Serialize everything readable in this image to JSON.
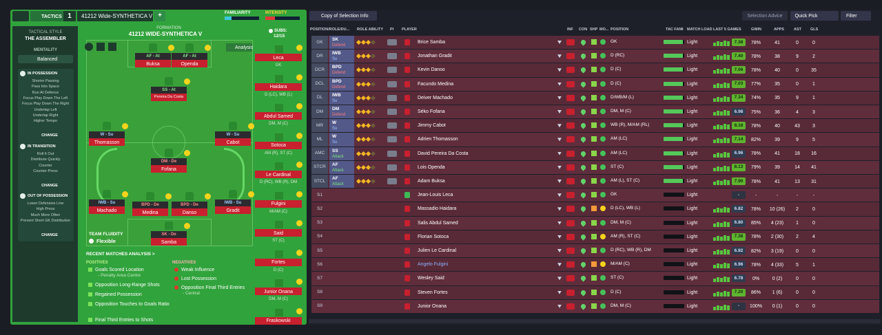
{
  "header": {
    "tactics": "TACTICS",
    "slot": "1",
    "tactic_name": "41212 Wide-SYNTHETICA V",
    "add": "+",
    "familiarity": "FAMILIARITY",
    "intensity": "INTENSITY"
  },
  "sidebar": {
    "style_label": "TACTICAL STYLE",
    "style": "THE ASSEMBLER",
    "mentality_label": "MENTALITY",
    "mentality": "Balanced",
    "sections": [
      {
        "title": "IN POSSESSION",
        "items": [
          "Shorter Passing",
          "Pass Into Space",
          "Run At Defence",
          "Focus Play Down The Left",
          "Focus Play Down The Right",
          "Underlap Left",
          "Underlap Right",
          "Higher Tempo"
        ],
        "button": "CHANGE"
      },
      {
        "title": "IN TRANSITION",
        "items": [
          "Roll It Out",
          "Distribute Quickly",
          "Counter",
          "Counter-Press"
        ],
        "button": "CHANGE"
      },
      {
        "title": "OUT OF POSSESSION",
        "items": [
          "Lower Defensive Line",
          "High Press",
          "Much More Often",
          "Prevent Short GK Distribution"
        ],
        "button": "CHANGE"
      }
    ]
  },
  "pitch": {
    "formation_label": "FORMATION",
    "formation": "41212 WIDE-SYNTHETICA V",
    "analysis": "Analysis",
    "fluidity_label": "TEAM FLUIDITY",
    "fluidity": "Flexible",
    "players": [
      {
        "role": "AF - At",
        "name": "Buksa"
      },
      {
        "role": "AF - At",
        "name": "Openda"
      },
      {
        "role": "SS - At",
        "name": "Pereira Da Costa"
      },
      {
        "role": "W - Su",
        "name": "Thomasson"
      },
      {
        "role": "W - Su",
        "name": "Cabot"
      },
      {
        "role": "DM - De",
        "name": "Fofana"
      },
      {
        "role": "IWB - Su",
        "name": "Machado"
      },
      {
        "role": "BPD - De",
        "name": "Medina"
      },
      {
        "role": "BPD - De",
        "name": "Danso"
      },
      {
        "role": "IWB - Su",
        "name": "Gradit"
      },
      {
        "role": "SK - De",
        "name": "Samba"
      }
    ]
  },
  "subs": {
    "label": "SUBS:",
    "count": "12/15",
    "players": [
      {
        "name": "Leca",
        "position": "GK"
      },
      {
        "name": "Haidara",
        "position": "D (LC), WB (L)"
      },
      {
        "name": "Abdul Samed",
        "position": "DM, M (C)"
      },
      {
        "name": "Sotoca",
        "position": "AM (R), ST (C)"
      },
      {
        "name": "Le Cardinal",
        "position": "D (RC), WB (R), DM"
      },
      {
        "name": "Fulgini",
        "position": "M/AM (C)"
      },
      {
        "name": "Said",
        "position": "ST (C)"
      },
      {
        "name": "Fortes",
        "position": "D (C)"
      },
      {
        "name": "Junior Onana",
        "position": "DM, M (C)"
      },
      {
        "name": "Fraskowski",
        "position": ""
      }
    ]
  },
  "analysis": {
    "title": "RECENT MATCHES ANALYSIS >",
    "positives_label": "POSITIVES",
    "positives": [
      {
        "text": "Goals Scored Location",
        "sub": "- Penalty Area Centre"
      },
      {
        "text": "Opposition Long-Range Shots"
      },
      {
        "text": "Regained Possession"
      },
      {
        "text": "Opposition Touches to Goals Ratio"
      },
      {
        "text": "Final Third Entries to Shots"
      }
    ],
    "negatives_label": "NEGATIVES",
    "negatives": [
      {
        "text": "Weak Influence"
      },
      {
        "text": "Lost Possession"
      },
      {
        "text": "Opposition Final Third Entries",
        "sub": "- Central"
      }
    ]
  },
  "toolbar": {
    "view": "Copy of Selection Info",
    "advice": "Selection Advice",
    "quick_pick": "Quick Pick",
    "filter": "Filter"
  },
  "table": {
    "headers": [
      "POSITION/ROLE/DU...",
      "ROLE ABILITY",
      "PI",
      "PLAYER",
      "INF",
      "CON",
      "SHP",
      "MO...",
      "POSITION",
      "TAC FAMI",
      "MATCH LOAD",
      "LAST 5 GAMES",
      "GWIN",
      "APPS",
      "AST",
      "GLS"
    ],
    "rows": [
      {
        "slot": "GK",
        "role": "SK",
        "duty": "Defend",
        "name": "Brice Samba",
        "position": "GK",
        "load": "Light",
        "rating": "7.38",
        "gwin": "78%",
        "apps": "41",
        "ast": "0",
        "gls": "0"
      },
      {
        "slot": "DR",
        "role": "IWB",
        "duty": "Su",
        "name": "Jonathan Gradit",
        "position": "D (RC)",
        "load": "Light",
        "rating": "7.40",
        "gwin": "78%",
        "apps": "38",
        "ast": "9",
        "gls": "2"
      },
      {
        "slot": "DCR",
        "role": "BPD",
        "duty": "Defend",
        "name": "Kevin Danso",
        "position": "D (C)",
        "load": "Light",
        "rating": "7.06",
        "gwin": "78%",
        "apps": "40",
        "ast": "0",
        "gls": "35"
      },
      {
        "slot": "DCL",
        "role": "BPD",
        "duty": "Defend",
        "name": "Facundo Medina",
        "position": "D (C)",
        "load": "Light",
        "rating": "7.03",
        "gwin": "77%",
        "apps": "35",
        "ast": "0",
        "gls": "1"
      },
      {
        "slot": "DL",
        "role": "IWB",
        "duty": "Su",
        "name": "Deiver Machado",
        "position": "D/WB/M (L)",
        "load": "Light",
        "rating": "7.34",
        "gwin": "74%",
        "apps": "35",
        "ast": "9",
        "gls": "1"
      },
      {
        "slot": "DM",
        "role": "DM",
        "duty": "Defend",
        "name": "Séko Fofana",
        "position": "DM, M (C)",
        "load": "Light",
        "rating": "6.98",
        "gwin": "75%",
        "apps": "36",
        "ast": "4",
        "gls": "3"
      },
      {
        "slot": "MR",
        "role": "W",
        "duty": "Su",
        "name": "Jimmy Cabot",
        "position": "WB (R), M/AM (RL)",
        "load": "Light",
        "rating": "8.18",
        "gwin": "78%",
        "apps": "40",
        "ast": "43",
        "gls": "3"
      },
      {
        "slot": "ML",
        "role": "W",
        "duty": "Su",
        "name": "Adrien Thomasson",
        "position": "AM (LC)",
        "load": "Light",
        "rating": "7.14",
        "gwin": "82%",
        "apps": "39",
        "ast": "9",
        "gls": "5"
      },
      {
        "slot": "AMC",
        "role": "SS",
        "duty": "Attack",
        "name": "David Pereira Da Costa",
        "position": "AM (LC)",
        "load": "Light",
        "rating": "6.96",
        "gwin": "78%",
        "apps": "41",
        "ast": "18",
        "gls": "16"
      },
      {
        "slot": "STCR",
        "role": "AF",
        "duty": "Attack",
        "name": "Lois Openda",
        "position": "ST (C)",
        "load": "Light",
        "rating": "8.13",
        "gwin": "79%",
        "apps": "39",
        "ast": "14",
        "gls": "41"
      },
      {
        "slot": "STCL",
        "role": "AF",
        "duty": "Attack",
        "name": "Adam Buksa",
        "position": "AM (L), ST (C)",
        "load": "Light",
        "rating": "7.90",
        "gwin": "78%",
        "apps": "41",
        "ast": "13",
        "gls": "31"
      },
      {
        "slot": "S1",
        "name": "Jean-Louis Leca",
        "position": "GK",
        "load": "Light",
        "rating": "-",
        "gwin": "-",
        "apps": "-",
        "ast": "-",
        "gls": "-"
      },
      {
        "slot": "S2",
        "name": "Massadio Haidara",
        "position": "D (LC), WB (L)",
        "load": "Light",
        "rating": "6.82",
        "gwin": "78%",
        "apps": "10 (26)",
        "ast": "2",
        "gls": "0"
      },
      {
        "slot": "S3",
        "name": "Salis Abdul Samed",
        "position": "DM, M (C)",
        "load": "Light",
        "rating": "6.80",
        "gwin": "85%",
        "apps": "4 (23)",
        "ast": "1",
        "gls": "0"
      },
      {
        "slot": "S4",
        "name": "Florian Sotoca",
        "position": "AM (R), ST (C)",
        "load": "Light",
        "rating": "7.38",
        "gwin": "78%",
        "apps": "2 (30)",
        "ast": "2",
        "gls": "4"
      },
      {
        "slot": "S5",
        "name": "Julien Le Cardinal",
        "position": "D (RC), WB (R), DM",
        "load": "Light",
        "rating": "6.82",
        "gwin": "82%",
        "apps": "3 (19)",
        "ast": "0",
        "gls": "0"
      },
      {
        "slot": "S6",
        "name": "Angelo Fulgini",
        "position": "M/AM (C)",
        "load": "Light",
        "rating": "6.96",
        "gwin": "78%",
        "apps": "4 (33)",
        "ast": "5",
        "gls": "1"
      },
      {
        "slot": "S7",
        "name": "Wesley Said",
        "position": "ST (C)",
        "load": "Light",
        "rating": "6.78",
        "gwin": "0%",
        "apps": "0 (2)",
        "ast": "0",
        "gls": "0"
      },
      {
        "slot": "S8",
        "name": "Steven Fortes",
        "position": "D (C)",
        "load": "Light",
        "rating": "7.20",
        "gwin": "86%",
        "apps": "1 (6)",
        "ast": "0",
        "gls": "0"
      },
      {
        "slot": "S9",
        "name": "Junior Onana",
        "position": "DM, M (C)",
        "load": "Light",
        "rating": "-",
        "gwin": "100%",
        "apps": "0 (1)",
        "ast": "0",
        "gls": "0"
      }
    ]
  }
}
